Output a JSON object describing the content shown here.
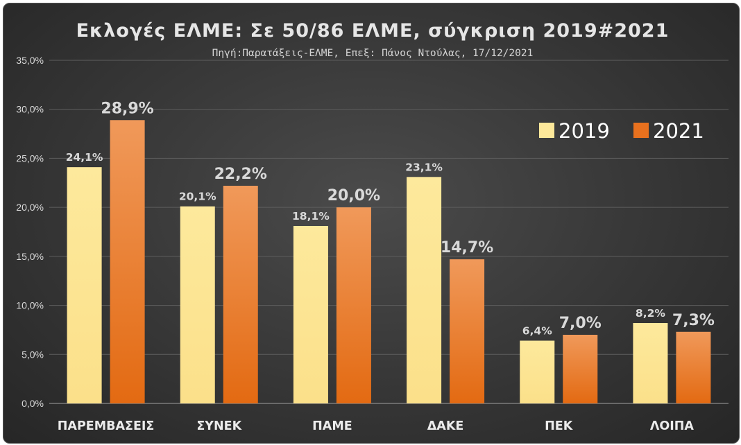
{
  "chart_data": {
    "type": "bar",
    "title": "Εκλογές ΕΛΜΕ: Σε 50/86 ΕΛΜΕ, σύγκριση  2019#2021",
    "subtitle": "Πηγή:Παρατάξεις-ΕΛΜΕ,  Επεξ: Πάνος Ντούλας,  17/12/2021",
    "categories": [
      "ΠΑΡΕΜΒΑΣΕΙΣ",
      "ΣΥΝΕΚ",
      "ΠΑΜΕ",
      "ΔΑΚΕ",
      "ΠΕΚ",
      "ΛΟΙΠΑ"
    ],
    "series": [
      {
        "name": "2019",
        "values": [
          24.1,
          20.1,
          18.1,
          23.1,
          6.4,
          8.2
        ],
        "labels": [
          "24,1%",
          "20,1%",
          "18,1%",
          "23,1%",
          "6,4%",
          "8,2%"
        ],
        "color": "#fde89a"
      },
      {
        "name": "2021",
        "values": [
          28.9,
          22.2,
          20.0,
          14.7,
          7.0,
          7.3
        ],
        "labels": [
          "28,9%",
          "22,2%",
          "20,0%",
          "14,7%",
          "7,0%",
          "7,3%"
        ],
        "color": "#e8711e"
      }
    ],
    "ylim": [
      0,
      35
    ],
    "yticks": [
      0,
      5,
      10,
      15,
      20,
      25,
      30,
      35
    ],
    "ytick_labels": [
      "0,0%",
      "5,0%",
      "10,0%",
      "15,0%",
      "20,0%",
      "25,0%",
      "30,0%",
      "35,0%"
    ],
    "xlabel": "",
    "ylabel": "",
    "grid": true,
    "legend": "top-right"
  }
}
